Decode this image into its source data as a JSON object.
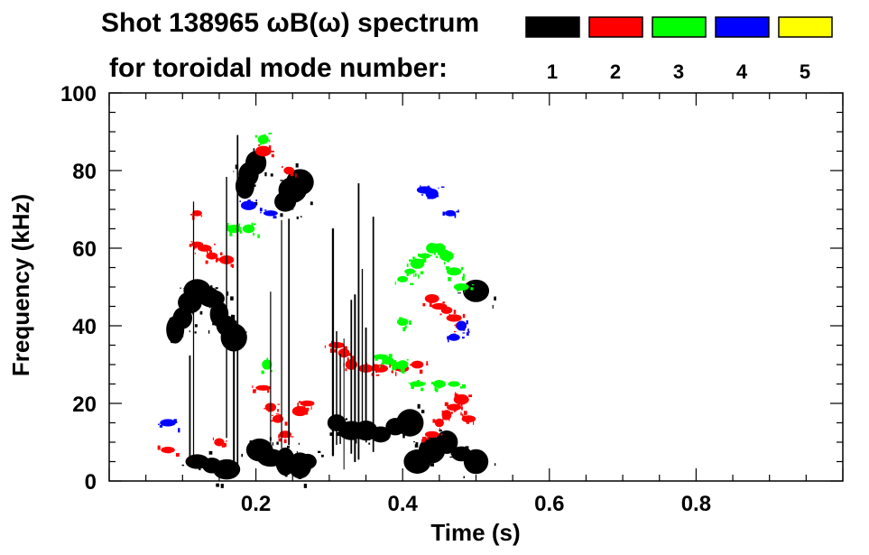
{
  "header": {
    "title": "Shot 138965 ωB(ω) spectrum",
    "subtitle": "for toroidal mode number:"
  },
  "legend": [
    {
      "label": "1",
      "color": "#000000"
    },
    {
      "label": "2",
      "color": "#ff0000"
    },
    {
      "label": "3",
      "color": "#00ff00"
    },
    {
      "label": "4",
      "color": "#0000ff"
    },
    {
      "label": "5",
      "color": "#ffff00"
    }
  ],
  "chart_data": {
    "type": "heatmap",
    "title": "Shot 138965 ωB(ω) spectrum",
    "xlabel": "Time (s)",
    "ylabel": "Frequency (kHz)",
    "xlim": [
      0.0,
      1.0
    ],
    "ylim": [
      0,
      100
    ],
    "xticks": [
      0.2,
      0.4,
      0.6,
      0.8
    ],
    "xtick_labels": [
      "0.2",
      "0.4",
      "0.6",
      "0.8"
    ],
    "yticks": [
      0,
      20,
      40,
      60,
      80,
      100
    ],
    "ytick_labels": [
      "0",
      "20",
      "40",
      "60",
      "80",
      "100"
    ],
    "grid": false,
    "legend_position": "top-right",
    "series": [
      {
        "name": "1",
        "color": "#000000",
        "points": [
          [
            0.09,
            39
          ],
          [
            0.1,
            42
          ],
          [
            0.11,
            46
          ],
          [
            0.12,
            49
          ],
          [
            0.13,
            48
          ],
          [
            0.14,
            47
          ],
          [
            0.15,
            43
          ],
          [
            0.16,
            40
          ],
          [
            0.17,
            37
          ],
          [
            0.185,
            76
          ],
          [
            0.19,
            79
          ],
          [
            0.2,
            82
          ],
          [
            0.24,
            72
          ],
          [
            0.25,
            75
          ],
          [
            0.26,
            77
          ],
          [
            0.205,
            8
          ],
          [
            0.22,
            6
          ],
          [
            0.24,
            5
          ],
          [
            0.26,
            4
          ],
          [
            0.27,
            5
          ],
          [
            0.31,
            15
          ],
          [
            0.33,
            13
          ],
          [
            0.35,
            13
          ],
          [
            0.37,
            12
          ],
          [
            0.39,
            14
          ],
          [
            0.41,
            15
          ],
          [
            0.42,
            5
          ],
          [
            0.44,
            8
          ],
          [
            0.46,
            10
          ],
          [
            0.48,
            7
          ],
          [
            0.5,
            5
          ],
          [
            0.12,
            5
          ],
          [
            0.14,
            4
          ],
          [
            0.16,
            3
          ],
          [
            0.5,
            49
          ]
        ]
      },
      {
        "name": "2",
        "color": "#ff0000",
        "points": [
          [
            0.12,
            61
          ],
          [
            0.13,
            60
          ],
          [
            0.14,
            58
          ],
          [
            0.16,
            57
          ],
          [
            0.15,
            10
          ],
          [
            0.08,
            8
          ],
          [
            0.21,
            24
          ],
          [
            0.22,
            19
          ],
          [
            0.23,
            16
          ],
          [
            0.24,
            12
          ],
          [
            0.26,
            18
          ],
          [
            0.27,
            20
          ],
          [
            0.31,
            35
          ],
          [
            0.32,
            33
          ],
          [
            0.33,
            30
          ],
          [
            0.35,
            29
          ],
          [
            0.37,
            29
          ],
          [
            0.4,
            29
          ],
          [
            0.42,
            30
          ],
          [
            0.44,
            47
          ],
          [
            0.45,
            45
          ],
          [
            0.46,
            44
          ],
          [
            0.47,
            42
          ],
          [
            0.48,
            40
          ],
          [
            0.44,
            12
          ],
          [
            0.45,
            15
          ],
          [
            0.46,
            17
          ],
          [
            0.47,
            19
          ],
          [
            0.48,
            21
          ],
          [
            0.49,
            16
          ],
          [
            0.12,
            69
          ],
          [
            0.245,
            80
          ],
          [
            0.21,
            85
          ]
        ]
      },
      {
        "name": "3",
        "color": "#00ff00",
        "points": [
          [
            0.4,
            52
          ],
          [
            0.41,
            54
          ],
          [
            0.42,
            56
          ],
          [
            0.43,
            58
          ],
          [
            0.44,
            60
          ],
          [
            0.45,
            60
          ],
          [
            0.46,
            58
          ],
          [
            0.47,
            54
          ],
          [
            0.48,
            50
          ],
          [
            0.37,
            32
          ],
          [
            0.38,
            31
          ],
          [
            0.39,
            30
          ],
          [
            0.4,
            30
          ],
          [
            0.42,
            25
          ],
          [
            0.45,
            25
          ],
          [
            0.47,
            25
          ],
          [
            0.19,
            65
          ],
          [
            0.17,
            65
          ],
          [
            0.21,
            88
          ],
          [
            0.215,
            30
          ],
          [
            0.4,
            41
          ]
        ]
      },
      {
        "name": "4",
        "color": "#0000ff",
        "points": [
          [
            0.19,
            71
          ],
          [
            0.22,
            69
          ],
          [
            0.43,
            75
          ],
          [
            0.44,
            74
          ],
          [
            0.465,
            69
          ],
          [
            0.48,
            40
          ],
          [
            0.47,
            37
          ],
          [
            0.08,
            15
          ]
        ]
      },
      {
        "name": "5",
        "color": "#ffff00",
        "points": []
      }
    ]
  }
}
